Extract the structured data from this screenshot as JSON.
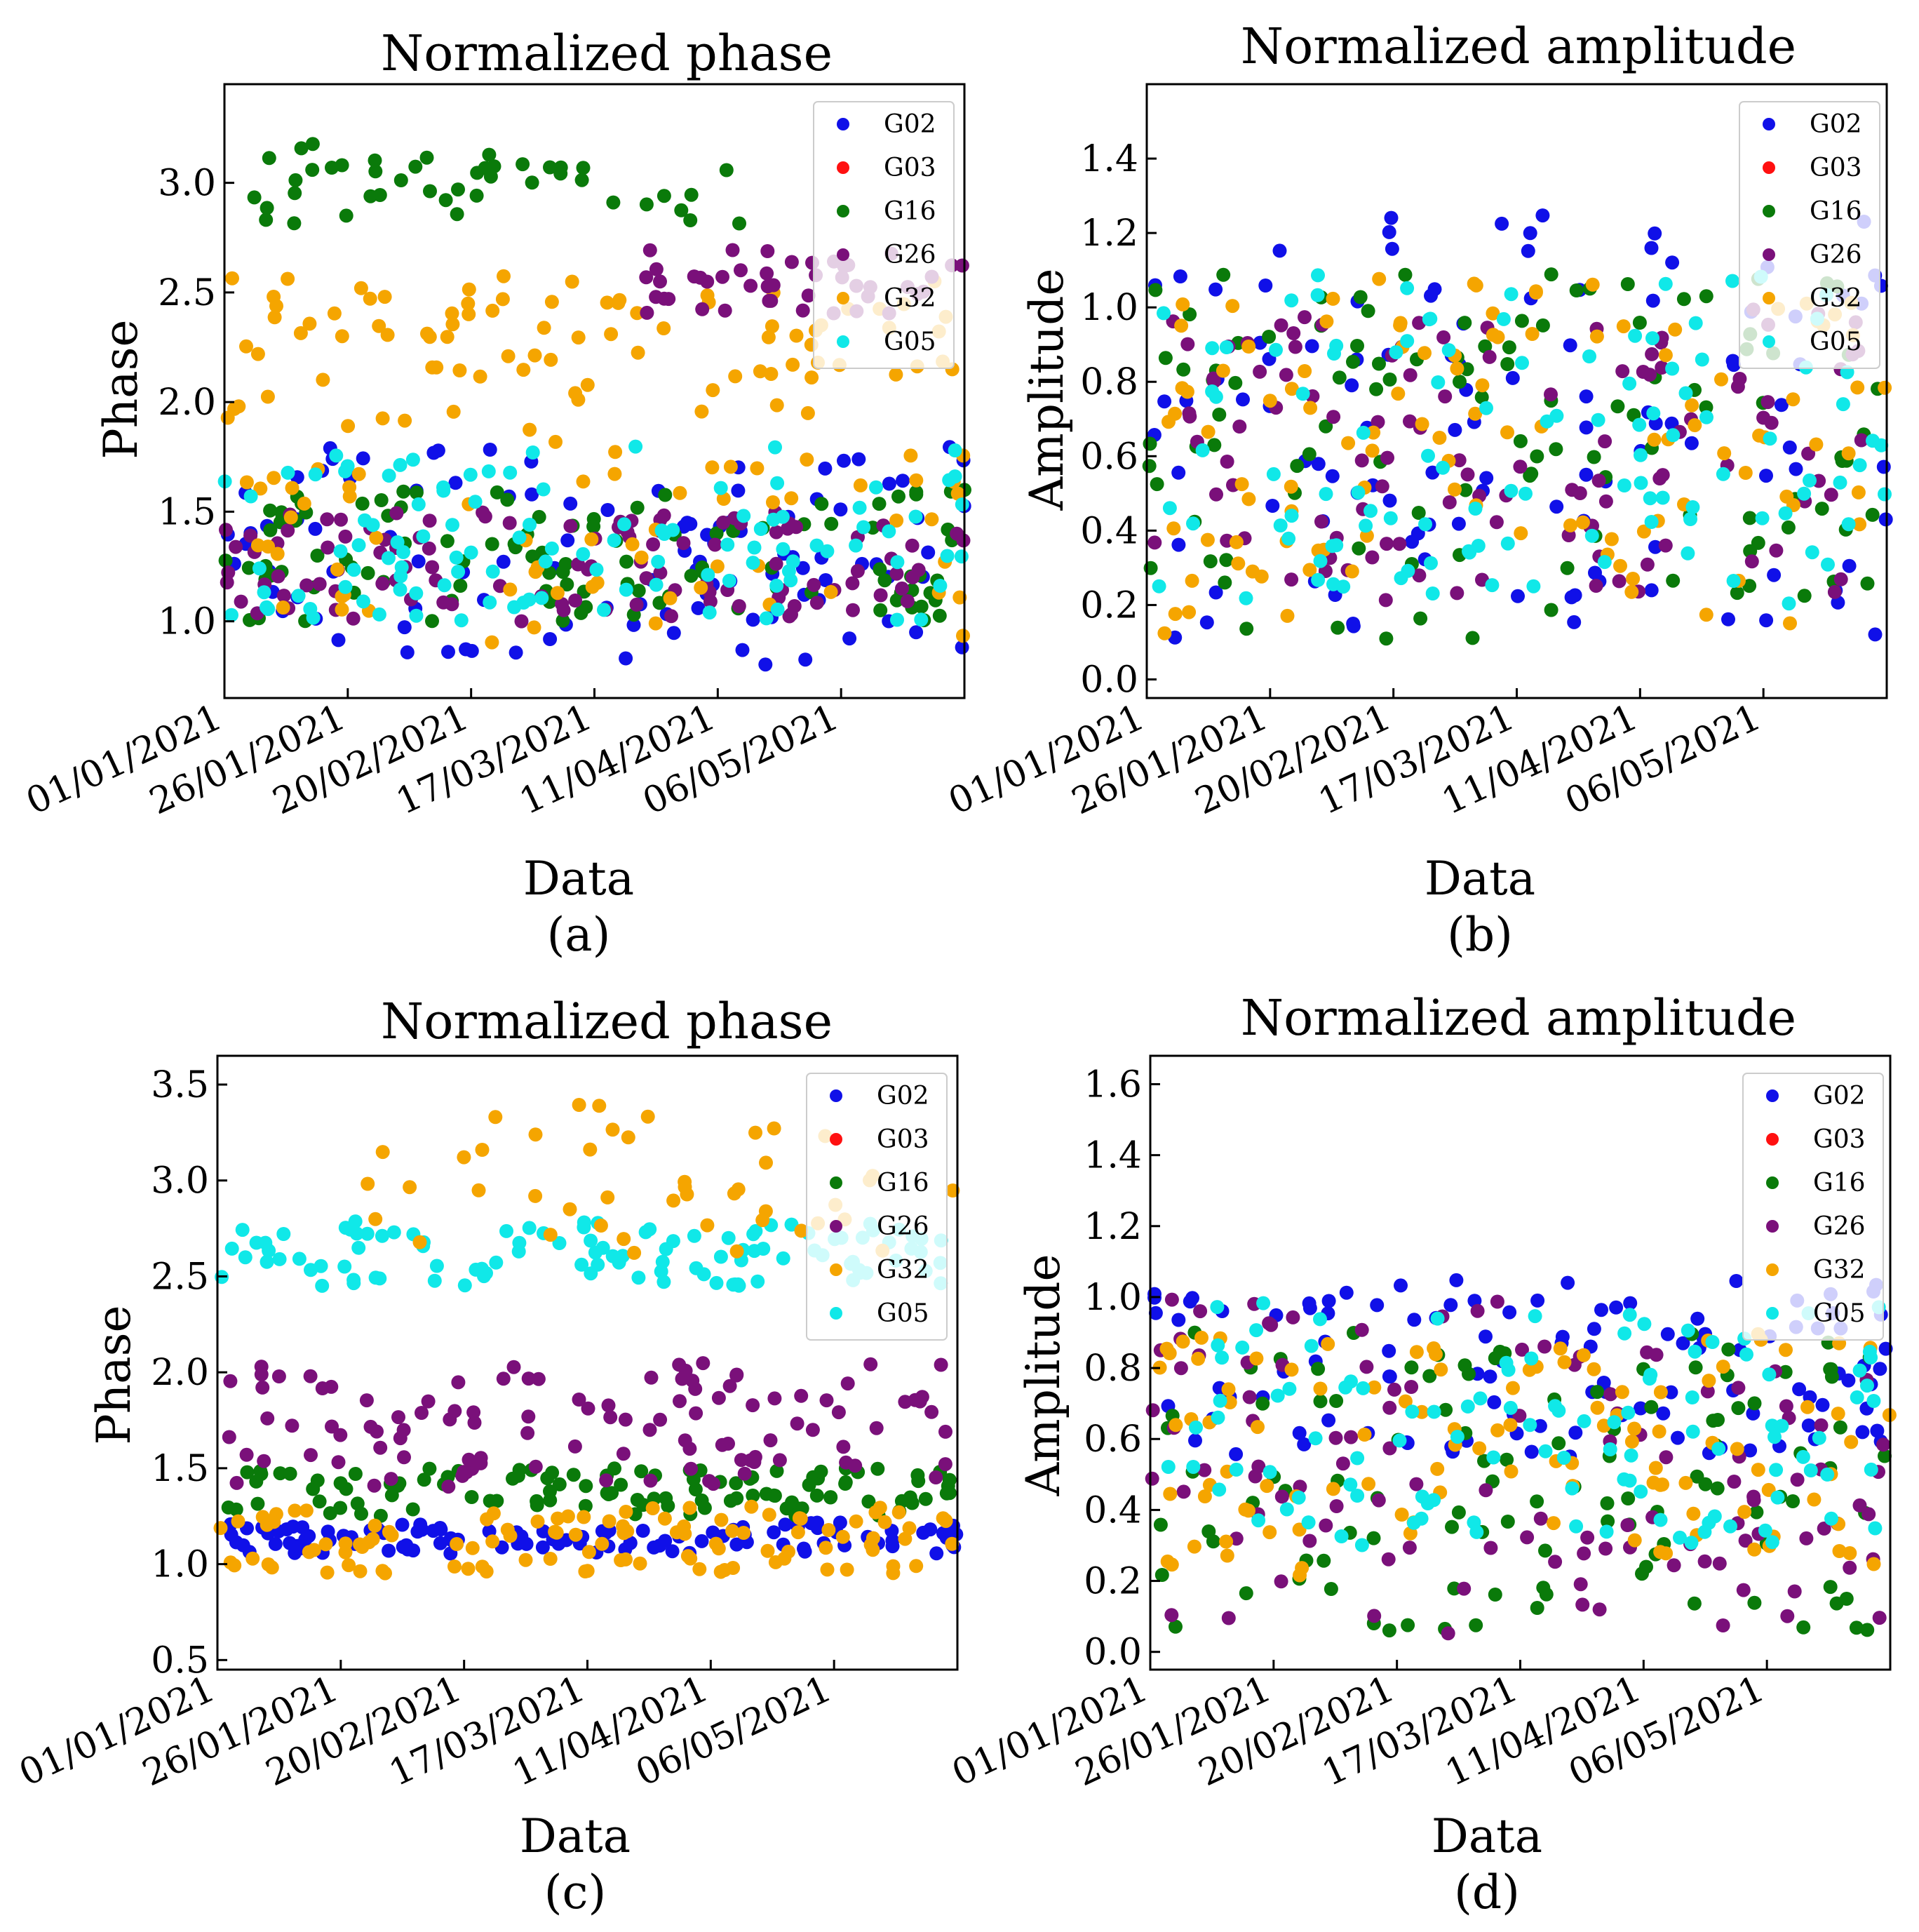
{
  "series_colors": {
    "G02": "#1010e8",
    "G03": "#ff1010",
    "G16": "#0a7a0a",
    "G26": "#7a107a",
    "G32": "#f5a500",
    "G05": "#10e8e8"
  },
  "legend": [
    "G02",
    "G03",
    "G16",
    "G26",
    "G32",
    "G05"
  ],
  "chart_data": [
    {
      "panel": "(a)",
      "type": "scatter",
      "title": "Normalized phase",
      "xlabel": "Data",
      "ylabel": "Phase",
      "ylim": [
        0.65,
        3.45
      ],
      "yticks": [
        "1.0",
        "1.5",
        "2.0",
        "2.5",
        "3.0"
      ],
      "xticks": [
        "01/01/2021",
        "26/01/2021",
        "20/02/2021",
        "17/03/2021",
        "11/04/2021",
        "06/05/2021"
      ],
      "xrange_days": [
        0,
        150
      ],
      "series_ranges": {
        "G02": [
          0.8,
          1.8
        ],
        "G16": [
          1.0,
          1.6
        ],
        "G26": [
          1.0,
          1.5
        ],
        "G32": [
          0.9,
          2.5
        ],
        "G05": [
          1.0,
          1.8
        ]
      },
      "highlight_bands": [
        {
          "series": "G16",
          "range": [
            2.8,
            3.2
          ],
          "days": [
            5,
            105
          ]
        },
        {
          "series": "G32",
          "range": [
            2.1,
            2.6
          ],
          "days": [
            0,
            150
          ]
        },
        {
          "series": "G26",
          "range": [
            2.4,
            2.7
          ],
          "days": [
            85,
            150
          ]
        }
      ]
    },
    {
      "panel": "(b)",
      "type": "scatter",
      "title": "Normalized amplitude",
      "xlabel": "Data",
      "ylabel": "Amplitude",
      "ylim": [
        -0.05,
        1.6
      ],
      "yticks": [
        "0.0",
        "0.2",
        "0.4",
        "0.6",
        "0.8",
        "1.0",
        "1.2",
        "1.4"
      ],
      "xticks": [
        "01/01/2021",
        "26/01/2021",
        "20/02/2021",
        "17/03/2021",
        "11/04/2021",
        "06/05/2021"
      ],
      "xrange_days": [
        0,
        150
      ],
      "series_ranges": {
        "G02": [
          0.1,
          1.25
        ],
        "G16": [
          0.1,
          1.1
        ],
        "G26": [
          0.2,
          1.0
        ],
        "G32": [
          0.1,
          1.1
        ],
        "G05": [
          0.2,
          1.1
        ]
      },
      "highlight_bands": []
    },
    {
      "panel": "(c)",
      "type": "scatter",
      "title": "Normalized phase",
      "xlabel": "Data",
      "ylabel": "Phase",
      "ylim": [
        0.45,
        3.65
      ],
      "yticks": [
        "0.5",
        "1.0",
        "1.5",
        "2.0",
        "2.5",
        "3.0",
        "3.5"
      ],
      "xticks": [
        "01/01/2021",
        "26/01/2021",
        "20/02/2021",
        "17/03/2021",
        "11/04/2021",
        "06/05/2021"
      ],
      "xrange_days": [
        0,
        150
      ],
      "series_ranges": {
        "G02": [
          1.05,
          1.22
        ],
        "G16": [
          1.25,
          1.5
        ],
        "G26": [
          1.4,
          2.05
        ],
        "G32": [
          0.95,
          1.3
        ],
        "G05": [
          2.45,
          2.8
        ]
      },
      "highlight_bands": [
        {
          "series": "G32",
          "range": [
            2.6,
            3.4
          ],
          "days": [
            30,
            150
          ]
        }
      ]
    },
    {
      "panel": "(d)",
      "type": "scatter",
      "title": "Normalized amplitude",
      "xlabel": "Data",
      "ylabel": "Amplitude",
      "ylim": [
        -0.05,
        1.68
      ],
      "yticks": [
        "0.0",
        "0.2",
        "0.4",
        "0.6",
        "0.8",
        "1.0",
        "1.2",
        "1.4",
        "1.6"
      ],
      "xticks": [
        "01/01/2021",
        "26/01/2021",
        "20/02/2021",
        "17/03/2021",
        "11/04/2021",
        "06/05/2021"
      ],
      "xrange_days": [
        0,
        150
      ],
      "series_ranges": {
        "G02": [
          0.55,
          1.05
        ],
        "G16": [
          0.05,
          0.9
        ],
        "G26": [
          0.05,
          1.0
        ],
        "G32": [
          0.2,
          0.9
        ],
        "G05": [
          0.3,
          1.0
        ]
      },
      "highlight_bands": []
    }
  ]
}
